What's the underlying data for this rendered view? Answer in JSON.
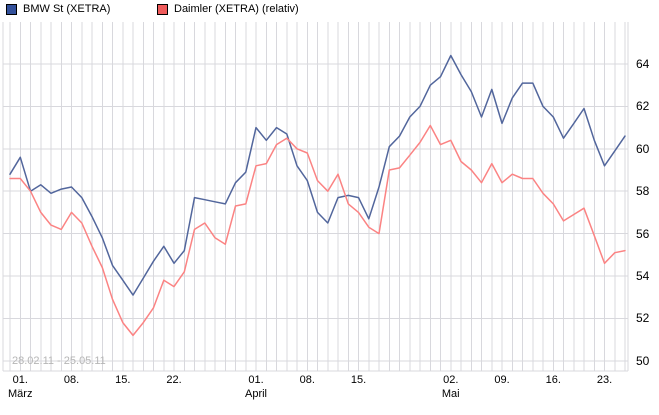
{
  "legend": [
    {
      "label": "BMW St (XETRA)",
      "swatch_color": "#33519b"
    },
    {
      "label": "Daimler (XETRA) (relativ)",
      "swatch_color": "#ef5b5b"
    }
  ],
  "chart_data": {
    "type": "line",
    "title": "",
    "watermark": "28.02.11 - 25.05.11",
    "grid": true,
    "legend_position": "top-left",
    "grid_color": "#d8d8dd",
    "watermark_color": "#b6b6b6",
    "background_color": "#ffffff",
    "ylim": [
      49.5,
      66.0
    ],
    "y_ticks": [
      64,
      62,
      60,
      58,
      56,
      54,
      52,
      50
    ],
    "x_ticks": [
      {
        "index": 1,
        "label": "01.",
        "month": "März"
      },
      {
        "index": 6,
        "label": "08."
      },
      {
        "index": 11,
        "label": "15."
      },
      {
        "index": 16,
        "label": "22."
      },
      {
        "index": 24,
        "label": "01.",
        "month": "April"
      },
      {
        "index": 29,
        "label": "08."
      },
      {
        "index": 34,
        "label": "15."
      },
      {
        "index": 43,
        "label": "02.",
        "month": "Mai"
      },
      {
        "index": 48,
        "label": "09."
      },
      {
        "index": 53,
        "label": "16."
      },
      {
        "index": 58,
        "label": "23."
      }
    ],
    "x_dates": [
      "28.02.11",
      "01.03.11",
      "02.03.11",
      "03.03.11",
      "04.03.11",
      "07.03.11",
      "08.03.11",
      "09.03.11",
      "10.03.11",
      "11.03.11",
      "14.03.11",
      "15.03.11",
      "16.03.11",
      "17.03.11",
      "18.03.11",
      "21.03.11",
      "22.03.11",
      "23.03.11",
      "24.03.11",
      "25.03.11",
      "28.03.11",
      "29.03.11",
      "30.03.11",
      "31.03.11",
      "01.04.11",
      "04.04.11",
      "05.04.11",
      "06.04.11",
      "07.04.11",
      "08.04.11",
      "11.04.11",
      "12.04.11",
      "13.04.11",
      "14.04.11",
      "15.04.11",
      "18.04.11",
      "19.04.11",
      "20.04.11",
      "21.04.11",
      "26.04.11",
      "27.04.11",
      "28.04.11",
      "29.04.11",
      "02.05.11",
      "03.05.11",
      "04.05.11",
      "05.05.11",
      "06.05.11",
      "09.05.11",
      "10.05.11",
      "11.05.11",
      "12.05.11",
      "13.05.11",
      "16.05.11",
      "17.05.11",
      "18.05.11",
      "19.05.11",
      "20.05.11",
      "23.05.11",
      "24.05.11",
      "25.05.11"
    ],
    "series": [
      {
        "name": "BMW St (XETRA)",
        "color": "#52669c",
        "values": [
          58.8,
          59.6,
          58.0,
          58.3,
          57.9,
          58.1,
          58.2,
          57.7,
          56.8,
          55.8,
          54.5,
          53.8,
          53.1,
          53.9,
          54.7,
          55.4,
          54.6,
          55.2,
          57.7,
          57.6,
          57.5,
          57.4,
          58.4,
          58.9,
          61.0,
          60.4,
          61.0,
          60.7,
          59.2,
          58.5,
          57.0,
          56.5,
          57.7,
          57.8,
          57.7,
          56.7,
          58.2,
          60.1,
          60.6,
          61.5,
          62.0,
          63.0,
          63.4,
          64.4,
          63.5,
          62.7,
          61.5,
          62.8,
          61.2,
          62.4,
          63.1,
          63.1,
          62.0,
          61.5,
          60.5,
          61.2,
          61.9,
          60.4,
          59.2,
          59.9,
          60.6
        ]
      },
      {
        "name": "Daimler (XETRA) (relativ)",
        "color": "#fb8383",
        "values": [
          58.6,
          58.6,
          58.0,
          57.0,
          56.4,
          56.2,
          57.0,
          56.5,
          55.4,
          54.4,
          52.9,
          51.8,
          51.2,
          51.8,
          52.5,
          53.8,
          53.5,
          54.2,
          56.2,
          56.5,
          55.8,
          55.5,
          57.3,
          57.4,
          59.2,
          59.3,
          60.2,
          60.5,
          60.0,
          59.8,
          58.5,
          58.0,
          58.8,
          57.4,
          57.0,
          56.3,
          56.0,
          59.0,
          59.1,
          59.7,
          60.3,
          61.1,
          60.2,
          60.4,
          59.4,
          59.0,
          58.4,
          59.3,
          58.4,
          58.8,
          58.6,
          58.6,
          57.9,
          57.4,
          56.6,
          56.9,
          57.2,
          55.9,
          54.6,
          55.1,
          55.2
        ]
      }
    ]
  }
}
